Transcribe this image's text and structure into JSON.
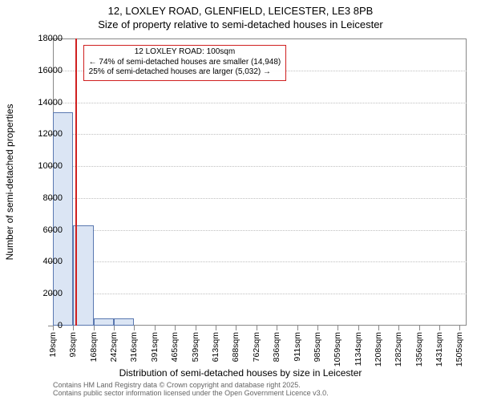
{
  "title_line1": "12, LOXLEY ROAD, GLENFIELD, LEICESTER, LE3 8PB",
  "title_line2": "Size of property relative to semi-detached houses in Leicester",
  "y_axis_label": "Number of semi-detached properties",
  "x_axis_label": "Distribution of semi-detached houses by size in Leicester",
  "attribution_line1": "Contains HM Land Registry data © Crown copyright and database right 2025.",
  "attribution_line2": "Contains public sector information licensed under the Open Government Licence v3.0.",
  "chart": {
    "type": "bar",
    "ylim": [
      0,
      18000
    ],
    "ytick_step": 2000,
    "background_color": "#ffffff",
    "grid_color": "#bfbfbf",
    "axis_color": "#888888",
    "bar_fill": "#dbe5f4",
    "bar_stroke": "#5a78b0",
    "marker_color": "#d02020",
    "callout_border": "#d02020",
    "x_ticks_labels": [
      "19sqm",
      "93sqm",
      "168sqm",
      "242sqm",
      "316sqm",
      "391sqm",
      "465sqm",
      "539sqm",
      "613sqm",
      "688sqm",
      "762sqm",
      "836sqm",
      "911sqm",
      "985sqm",
      "1059sqm",
      "1134sqm",
      "1208sqm",
      "1282sqm",
      "1356sqm",
      "1431sqm",
      "1505sqm"
    ],
    "x_ticks": [
      19,
      93,
      168,
      242,
      316,
      391,
      465,
      539,
      613,
      688,
      762,
      836,
      911,
      985,
      1059,
      1134,
      1208,
      1282,
      1356,
      1431,
      1505
    ],
    "xlim": [
      19,
      1530
    ],
    "bars": [
      {
        "x0": 19,
        "x1": 93,
        "value": 13400
      },
      {
        "x0": 93,
        "x1": 168,
        "value": 6300
      },
      {
        "x0": 168,
        "x1": 242,
        "value": 450
      },
      {
        "x0": 242,
        "x1": 316,
        "value": 430
      },
      {
        "x0": 316,
        "x1": 391,
        "value": 0
      },
      {
        "x0": 391,
        "x1": 465,
        "value": 0
      }
    ],
    "marker_x": 100,
    "callout": {
      "title": "12 LOXLEY ROAD: 100sqm",
      "line_a": "← 74% of semi-detached houses are smaller (14,948)",
      "line_b": "25% of semi-detached houses are larger (5,032) →"
    }
  }
}
